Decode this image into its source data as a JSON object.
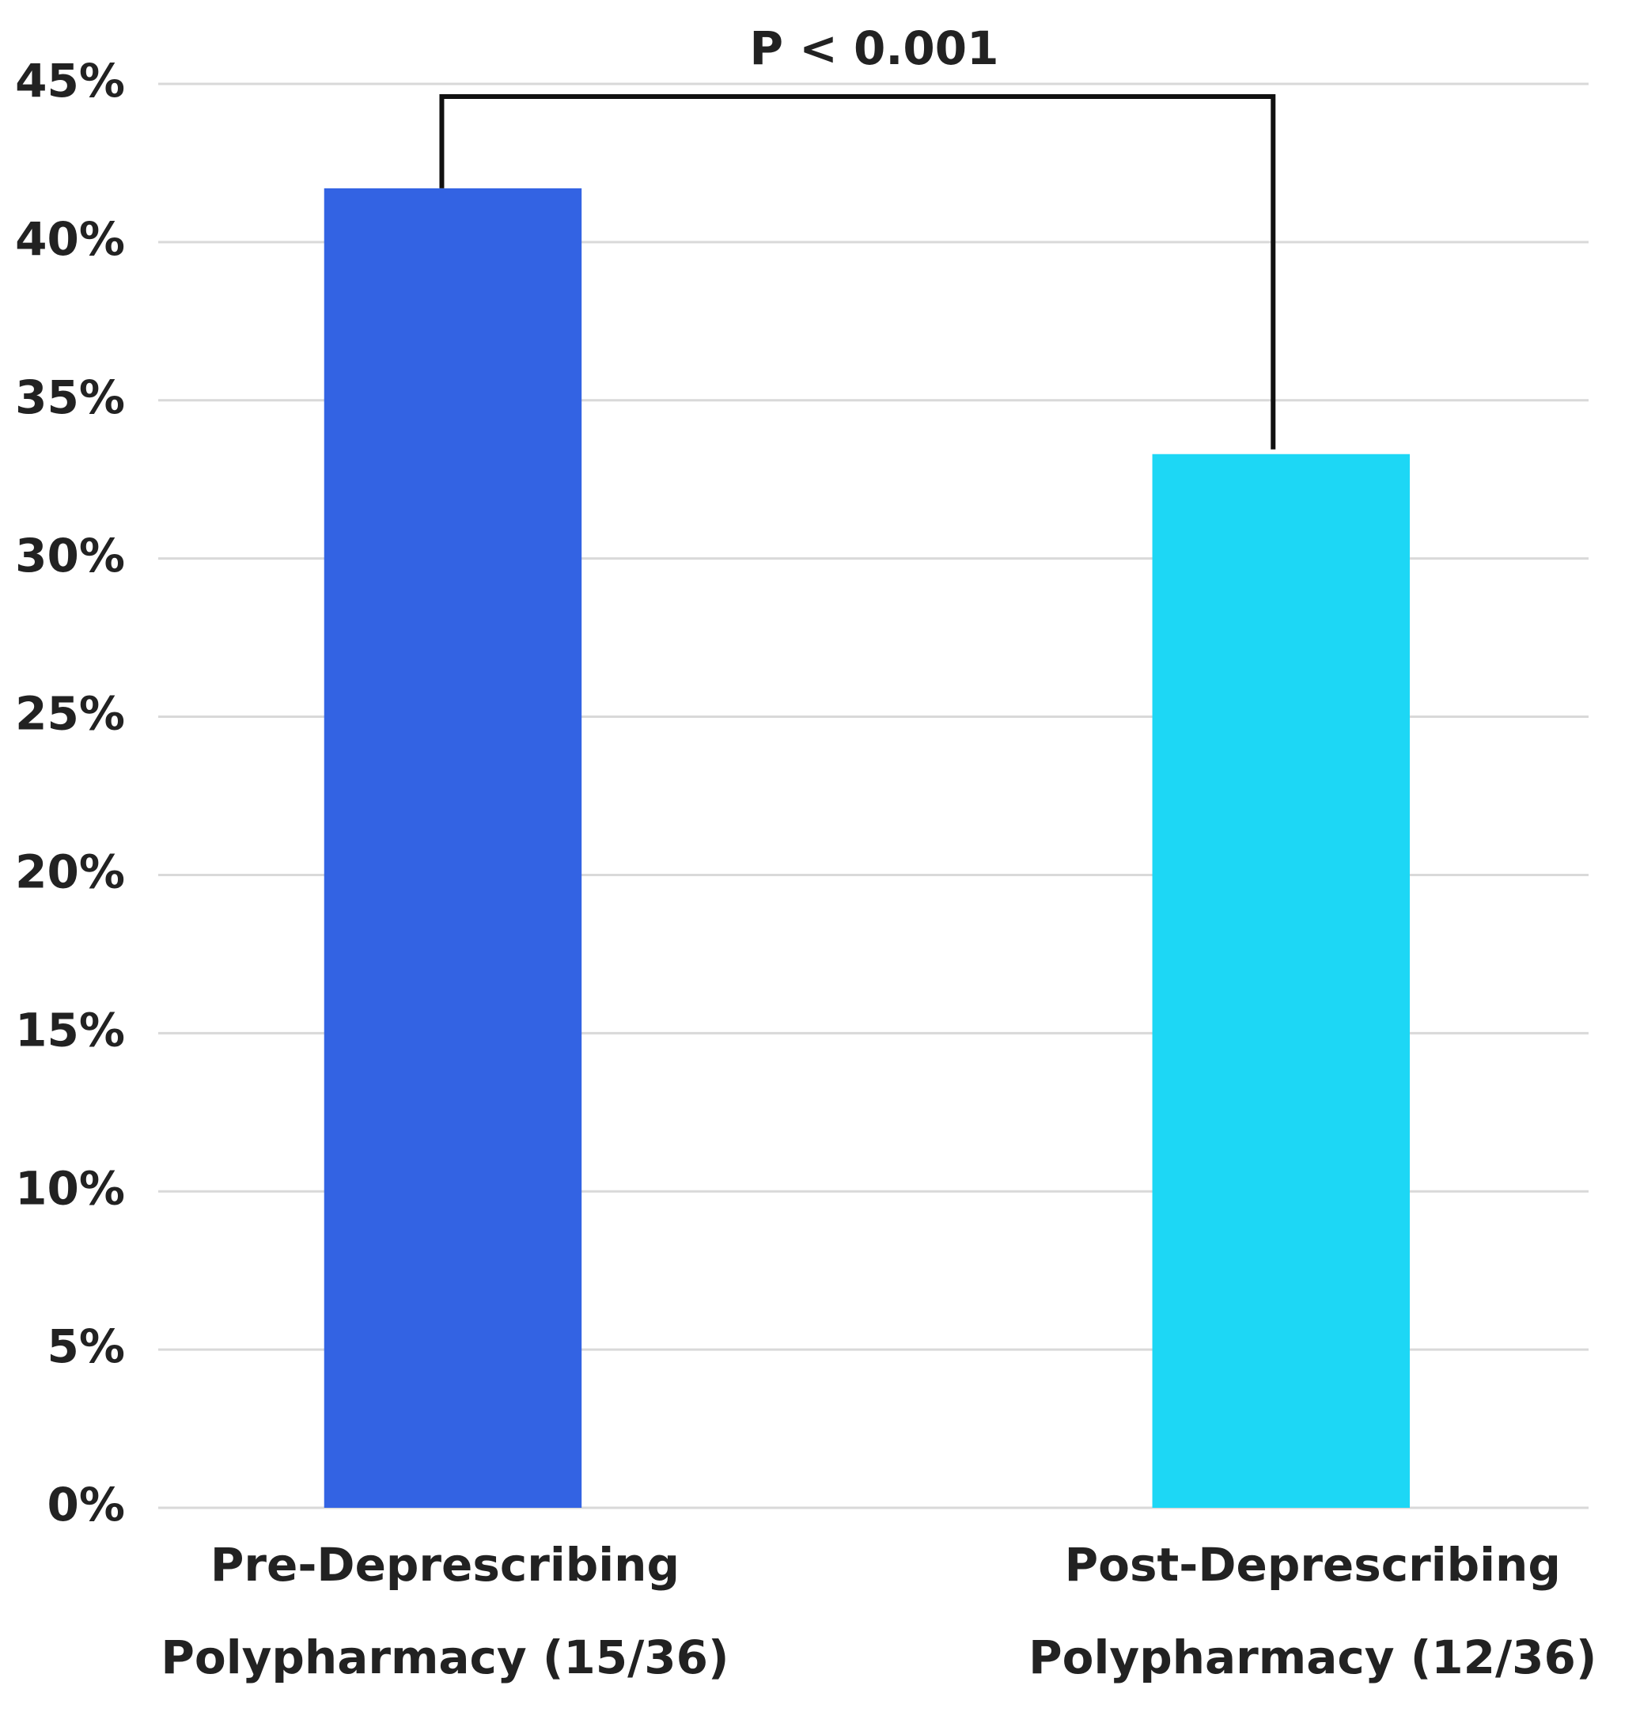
{
  "chart_data": {
    "type": "bar",
    "annotation": "P < 0.001",
    "categories": [
      [
        "Pre-Deprescribing",
        "Polypharmacy (15/36)"
      ],
      [
        "Post-Deprescribing",
        "Polypharmacy (12/36)"
      ]
    ],
    "values": [
      41.7,
      33.3
    ],
    "colors": [
      "#3363e3",
      "#1dd7f5"
    ],
    "ylim": [
      0,
      45
    ],
    "yticks": [
      {
        "value": 0,
        "label": "0%"
      },
      {
        "value": 5,
        "label": "5%"
      },
      {
        "value": 10,
        "label": "10%"
      },
      {
        "value": 15,
        "label": "15%"
      },
      {
        "value": 20,
        "label": "20%"
      },
      {
        "value": 25,
        "label": "25%"
      },
      {
        "value": 30,
        "label": "30%"
      },
      {
        "value": 35,
        "label": "35%"
      },
      {
        "value": 40,
        "label": "40%"
      },
      {
        "value": 45,
        "label": "45%"
      }
    ],
    "grid": true
  }
}
